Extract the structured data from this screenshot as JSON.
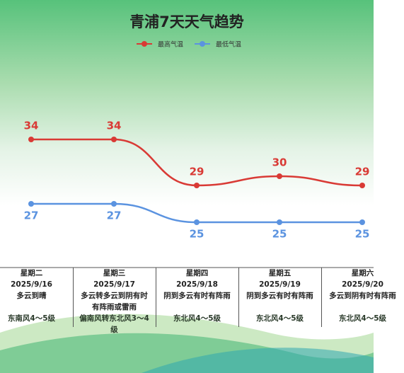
{
  "chart_data": {
    "type": "line",
    "title": "青浦7天天气趋势",
    "categories": [
      "星期二",
      "星期三",
      "星期四",
      "星期五",
      "星期六"
    ],
    "dates": [
      "2025/9/16",
      "2025/9/17",
      "2025/9/18",
      "2025/9/19",
      "2025/9/20"
    ],
    "weather": [
      "多云到晴",
      "多云转多云到阴有时有阵雨或雷雨",
      "阴到多云有时有阵雨",
      "阴到多云有时有阵雨",
      "多云到阴有时有阵雨"
    ],
    "wind": [
      "东南风4～5级",
      "偏南风转东北风3～4级",
      "东北风4～5级",
      "东北风4～5级",
      "东北风4～5级"
    ],
    "series": [
      {
        "name": "最高气温",
        "color": "#d93a35",
        "values": [
          34,
          34,
          29,
          30,
          29
        ]
      },
      {
        "name": "最低气温",
        "color": "#5b93e0",
        "values": [
          27,
          27,
          25,
          25,
          25
        ]
      }
    ]
  }
}
